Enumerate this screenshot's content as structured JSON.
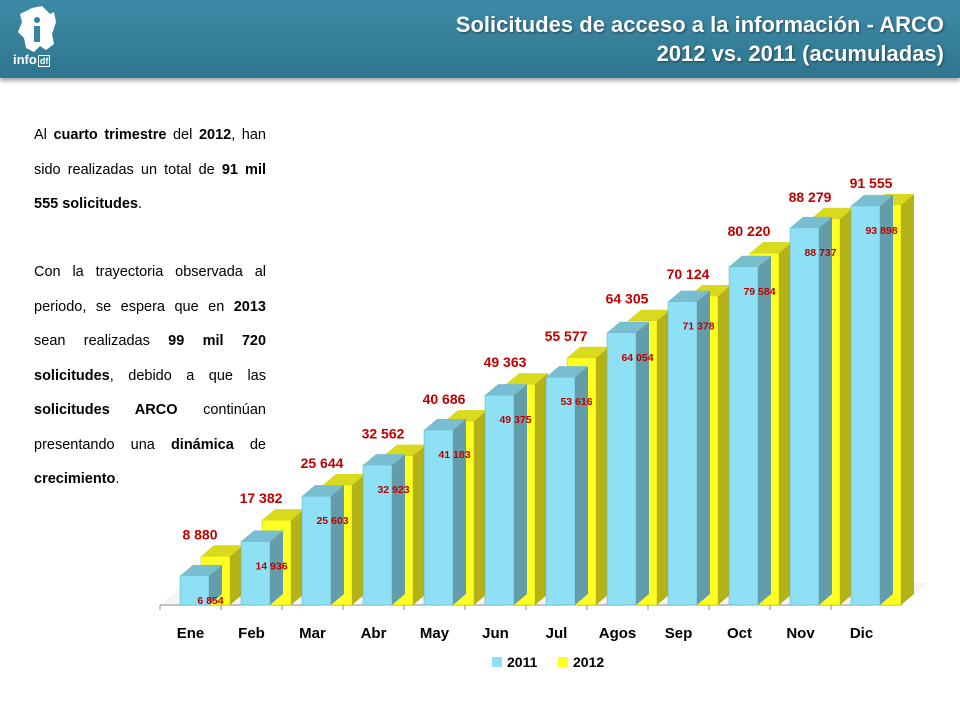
{
  "header": {
    "logo_text": "info",
    "logo_text_small": "df",
    "title_line1": "Solicitudes de acceso a la información - ARCO",
    "title_line2": "2012 vs. 2011 (acumuladas)"
  },
  "text": {
    "p1": [
      {
        "t": "Al ",
        "b": false
      },
      {
        "t": "cuarto trimestre",
        "b": true
      },
      {
        "t": " del ",
        "b": false
      },
      {
        "t": "2012",
        "b": true
      },
      {
        "t": ", han sido realizadas un total de ",
        "b": false
      },
      {
        "t": "91 mil 555 solicitudes",
        "b": true
      },
      {
        "t": ".",
        "b": false
      }
    ],
    "p2": [
      {
        "t": "Con la trayectoria observada al periodo, se espera que en ",
        "b": false
      },
      {
        "t": "2013",
        "b": true
      },
      {
        "t": " sean realizadas ",
        "b": false
      },
      {
        "t": "99 mil 720 solicitudes",
        "b": true
      },
      {
        "t": ", debido a que las ",
        "b": false
      },
      {
        "t": "solicitudes ARCO",
        "b": true
      },
      {
        "t": " continúan presentando una ",
        "b": false
      },
      {
        "t": "dinámica",
        "b": true
      },
      {
        "t": " de ",
        "b": false
      },
      {
        "t": "crecimiento",
        "b": true
      },
      {
        "t": ".",
        "b": false
      }
    ]
  },
  "colors": {
    "series_2011": "#8ee0f5",
    "series_2012": "#ffff22",
    "label_color": "#c00000",
    "header_bg": "#3385a2"
  },
  "chart_data": {
    "type": "bar",
    "title": "Solicitudes de acceso a la información - ARCO 2012 vs. 2011 (acumuladas)",
    "categories": [
      "Ene",
      "Feb",
      "Mar",
      "Abr",
      "May",
      "Jun",
      "Jul",
      "Agos",
      "Sep",
      "Oct",
      "Nov",
      "Dic"
    ],
    "series": [
      {
        "name": "2011",
        "values": [
          6854,
          14936,
          25603,
          32923,
          41183,
          49375,
          53616,
          64054,
          71378,
          79584,
          88737,
          93898
        ],
        "labels": [
          "6 854",
          "14 936",
          "25 603",
          "32 923",
          "41 183",
          "49 375",
          "53 616",
          "64 054",
          "71 378",
          "79 584",
          "88 737",
          "93 898"
        ]
      },
      {
        "name": "2012",
        "values": [
          8880,
          17382,
          25644,
          32562,
          40686,
          49363,
          55577,
          64305,
          70124,
          80220,
          88279,
          91555
        ],
        "labels": [
          "8 880",
          "17 382",
          "25 644",
          "32 562",
          "40 686",
          "49 363",
          "55 577",
          "64 305",
          "70 124",
          "80 220",
          "88 279",
          "91 555"
        ]
      }
    ],
    "xlabel": "",
    "ylabel": "",
    "ylim": [
      0,
      100000
    ],
    "grid": false,
    "legend": "bottom",
    "style": "3d-clustered-column"
  }
}
